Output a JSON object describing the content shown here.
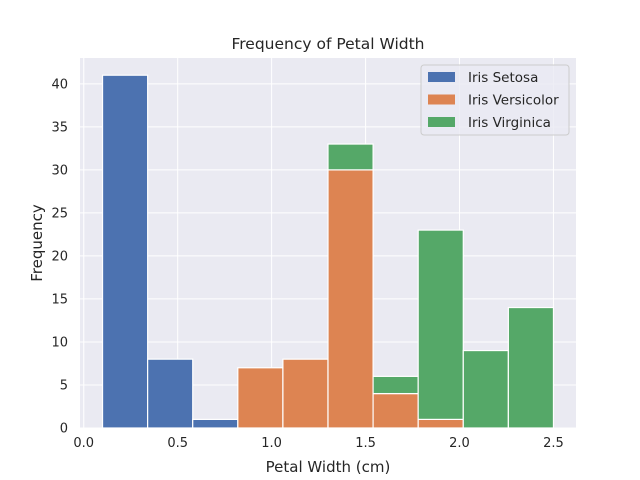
{
  "chart_data": {
    "type": "bar",
    "title": "Frequency of Petal Width",
    "xlabel": "Petal Width (cm)",
    "ylabel": "Frequency",
    "xlim": [
      -0.02,
      2.62
    ],
    "ylim": [
      0,
      43
    ],
    "x_ticks": [
      0.0,
      0.5,
      1.0,
      1.5,
      2.0,
      2.5
    ],
    "x_tick_labels": [
      "0.0",
      "0.5",
      "1.0",
      "1.5",
      "2.0",
      "2.5"
    ],
    "y_ticks": [
      0,
      5,
      10,
      15,
      20,
      25,
      30,
      35,
      40
    ],
    "y_tick_labels": [
      "0",
      "5",
      "10",
      "15",
      "20",
      "25",
      "30",
      "35",
      "40"
    ],
    "bin_edges": [
      0.1,
      0.34,
      0.58,
      0.82,
      1.06,
      1.3,
      1.54,
      1.78,
      2.02,
      2.26,
      2.5
    ],
    "stacked": true,
    "grid": true,
    "legend_position": "top-right",
    "series": [
      {
        "name": "Iris Setosa",
        "color": "#4c72b0",
        "values": [
          41,
          8,
          1,
          0,
          0,
          0,
          0,
          0,
          0,
          0
        ]
      },
      {
        "name": "Iris Versicolor",
        "color": "#dd8452",
        "values": [
          0,
          0,
          0,
          7,
          8,
          30,
          4,
          1,
          0,
          0
        ]
      },
      {
        "name": "Iris Virginica",
        "color": "#55a868",
        "values": [
          0,
          0,
          0,
          0,
          0,
          3,
          2,
          22,
          9,
          14
        ]
      }
    ]
  }
}
